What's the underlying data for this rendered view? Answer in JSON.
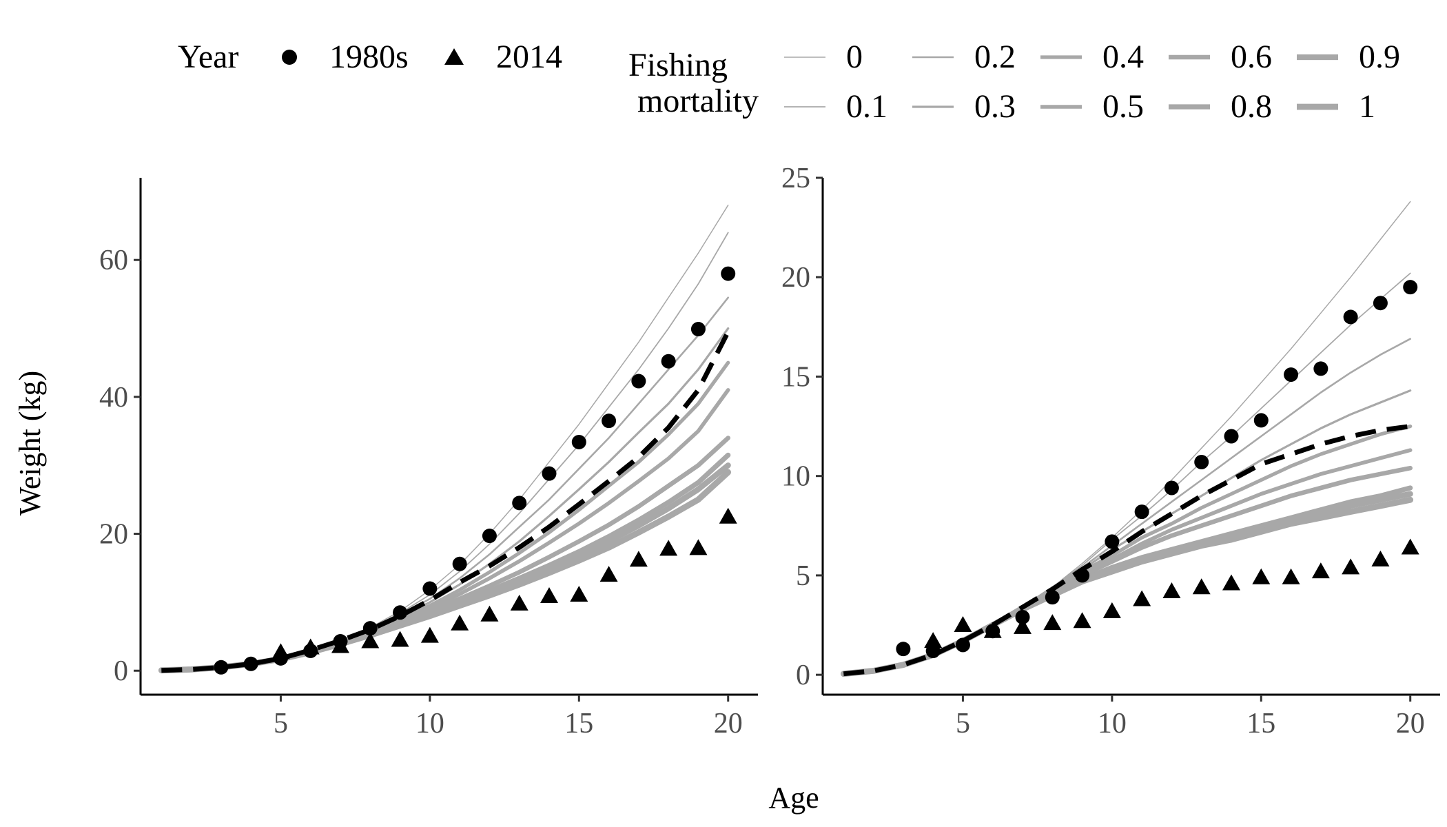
{
  "legend": {
    "year_title": "Year",
    "year_items": [
      {
        "label": "1980s",
        "shape": "circle"
      },
      {
        "label": "2014",
        "shape": "triangle"
      }
    ],
    "fm_title_line1": "Fishing",
    "fm_title_line2": "mortality",
    "fm_items": [
      {
        "label": "0",
        "width": 1.5
      },
      {
        "label": "0.1",
        "width": 1.8
      },
      {
        "label": "0.2",
        "width": 2.6
      },
      {
        "label": "0.3",
        "width": 3.2
      },
      {
        "label": "0.4",
        "width": 5.2
      },
      {
        "label": "0.5",
        "width": 5.6
      },
      {
        "label": "0.6",
        "width": 6.6
      },
      {
        "label": "0.8",
        "width": 7.2
      },
      {
        "label": "0.9",
        "width": 8.2
      },
      {
        "label": "1",
        "width": 8.8
      }
    ]
  },
  "x_axis_title": "Age",
  "chart_data": [
    {
      "type": "line",
      "panel": "left",
      "ylabel": "Weight (kg)",
      "xlim": [
        0.3,
        21
      ],
      "ylim": [
        -3.5,
        72
      ],
      "x_ticks": [
        5,
        10,
        15,
        20
      ],
      "y_ticks": [
        0,
        20,
        40,
        60
      ],
      "curve_x": [
        1,
        2,
        3,
        4,
        5,
        6,
        7,
        8,
        9,
        10,
        11,
        12,
        13,
        14,
        15,
        16,
        17,
        18,
        19,
        20
      ],
      "curves": [
        {
          "name": "0",
          "values": [
            0.05,
            0.18,
            0.5,
            1.0,
            1.8,
            3.0,
            4.5,
            6.3,
            8.7,
            11.8,
            15.5,
            20.0,
            25.0,
            30.5,
            36.0,
            42.0,
            48.0,
            54.5,
            61.0,
            68.0
          ]
        },
        {
          "name": "0.1",
          "values": [
            0.05,
            0.18,
            0.5,
            1.0,
            1.8,
            3.0,
            4.5,
            6.2,
            8.4,
            11.1,
            14.5,
            18.5,
            23.0,
            28.0,
            33.0,
            38.5,
            44.0,
            50.0,
            56.5,
            64.0
          ]
        },
        {
          "name": "0.2",
          "values": [
            0.05,
            0.18,
            0.5,
            1.0,
            1.8,
            3.0,
            4.4,
            6.0,
            8.1,
            10.5,
            13.5,
            17.0,
            21.0,
            25.0,
            29.5,
            34.0,
            39.0,
            44.0,
            49.0,
            54.5
          ]
        },
        {
          "name": "0.3",
          "values": [
            0.05,
            0.18,
            0.5,
            1.0,
            1.8,
            2.9,
            4.3,
            5.9,
            7.8,
            10.0,
            12.6,
            15.6,
            18.9,
            22.6,
            26.5,
            30.5,
            34.8,
            39.0,
            44.0,
            50.0
          ]
        },
        {
          "name": "0.4",
          "values": [
            0.05,
            0.18,
            0.5,
            1.0,
            1.8,
            2.9,
            4.2,
            5.8,
            7.5,
            9.5,
            11.8,
            14.4,
            17.2,
            20.2,
            23.5,
            27.0,
            30.5,
            34.5,
            39.0,
            45.0
          ]
        },
        {
          "name": "0.5",
          "values": [
            0.05,
            0.18,
            0.5,
            1.0,
            1.8,
            2.9,
            4.2,
            5.7,
            7.3,
            9.1,
            11.2,
            13.5,
            16.0,
            18.7,
            21.5,
            24.5,
            27.7,
            31.0,
            35.0,
            41.0
          ]
        },
        {
          "name": "0.6",
          "values": [
            0.05,
            0.18,
            0.5,
            1.0,
            1.8,
            2.8,
            4.1,
            5.5,
            7.0,
            8.7,
            10.5,
            12.4,
            14.4,
            16.6,
            18.9,
            21.3,
            24.0,
            27.0,
            30.0,
            34.0
          ]
        },
        {
          "name": "0.8",
          "values": [
            0.05,
            0.18,
            0.5,
            1.0,
            1.8,
            2.8,
            4.0,
            5.4,
            6.8,
            8.4,
            10.0,
            11.7,
            13.5,
            15.4,
            17.4,
            19.6,
            22.0,
            24.6,
            27.5,
            31.5
          ]
        },
        {
          "name": "0.9",
          "values": [
            0.05,
            0.18,
            0.5,
            1.0,
            1.7,
            2.8,
            4.0,
            5.3,
            6.7,
            8.2,
            9.8,
            11.4,
            13.1,
            14.9,
            16.8,
            18.9,
            21.2,
            23.7,
            26.5,
            30.0
          ]
        },
        {
          "name": "1",
          "values": [
            0.05,
            0.18,
            0.5,
            1.0,
            1.7,
            2.7,
            3.9,
            5.2,
            6.6,
            8.0,
            9.5,
            11.0,
            12.6,
            14.3,
            16.1,
            18.0,
            20.2,
            22.5,
            25.0,
            29.0
          ]
        }
      ],
      "dashed_line": {
        "values": [
          0.05,
          0.18,
          0.5,
          1.0,
          1.8,
          3.0,
          4.4,
          6.0,
          8.0,
          10.3,
          12.9,
          15.3,
          18.0,
          21.0,
          24.3,
          27.7,
          31.2,
          35.5,
          41.0,
          49.5
        ]
      },
      "points_1980s": {
        "x": [
          3,
          4,
          5,
          6,
          7,
          8,
          9,
          10,
          11,
          12,
          13,
          14,
          15,
          16,
          17,
          18,
          19,
          20
        ],
        "y": [
          0.5,
          1.0,
          1.8,
          2.9,
          4.3,
          6.2,
          8.5,
          12.0,
          15.6,
          19.7,
          24.5,
          28.8,
          33.4,
          36.5,
          42.3,
          45.2,
          49.9,
          58.0
        ]
      },
      "points_2014": {
        "x": [
          5,
          6,
          7,
          8,
          9,
          10,
          11,
          12,
          13,
          14,
          15,
          16,
          17,
          18,
          19,
          20
        ],
        "y": [
          2.7,
          3.4,
          3.6,
          4.3,
          4.5,
          5.1,
          6.9,
          8.2,
          9.8,
          10.9,
          11.1,
          14.0,
          16.2,
          17.8,
          17.9,
          22.5
        ]
      }
    },
    {
      "type": "line",
      "panel": "right",
      "ylabel": "",
      "xlim": [
        0.3,
        21
      ],
      "ylim": [
        -1.0,
        25
      ],
      "x_ticks": [
        5,
        10,
        15,
        20
      ],
      "y_ticks": [
        0,
        5,
        10,
        15,
        20,
        25
      ],
      "curve_x": [
        1,
        2,
        3,
        4,
        5,
        6,
        7,
        8,
        9,
        10,
        11,
        12,
        13,
        14,
        15,
        16,
        17,
        18,
        19,
        20
      ],
      "curves": [
        {
          "name": "0",
          "values": [
            0.05,
            0.2,
            0.5,
            1.0,
            1.7,
            2.5,
            3.4,
            4.4,
            5.6,
            6.9,
            8.3,
            9.8,
            11.4,
            13.0,
            14.7,
            16.4,
            18.2,
            20.0,
            21.9,
            23.8
          ]
        },
        {
          "name": "0.1",
          "values": [
            0.05,
            0.2,
            0.5,
            1.0,
            1.7,
            2.5,
            3.4,
            4.4,
            5.5,
            6.8,
            8.0,
            9.3,
            10.7,
            12.0,
            13.4,
            14.8,
            16.2,
            17.6,
            18.9,
            20.2
          ]
        },
        {
          "name": "0.2",
          "values": [
            0.05,
            0.2,
            0.5,
            1.0,
            1.7,
            2.5,
            3.4,
            4.4,
            5.4,
            6.5,
            7.6,
            8.7,
            9.8,
            10.9,
            12.0,
            13.1,
            14.2,
            15.2,
            16.1,
            16.9
          ]
        },
        {
          "name": "0.3",
          "values": [
            0.05,
            0.2,
            0.5,
            1.0,
            1.7,
            2.5,
            3.4,
            4.4,
            5.3,
            6.3,
            7.2,
            8.1,
            9.0,
            9.9,
            10.8,
            11.6,
            12.4,
            13.1,
            13.7,
            14.3
          ]
        },
        {
          "name": "0.4",
          "values": [
            0.05,
            0.2,
            0.5,
            1.0,
            1.7,
            2.5,
            3.4,
            4.3,
            5.2,
            6.0,
            6.9,
            7.6,
            8.4,
            9.1,
            9.8,
            10.5,
            11.1,
            11.6,
            12.1,
            12.5
          ]
        },
        {
          "name": "0.5",
          "values": [
            0.05,
            0.2,
            0.5,
            1.0,
            1.7,
            2.5,
            3.4,
            4.3,
            5.1,
            5.8,
            6.6,
            7.3,
            7.9,
            8.5,
            9.1,
            9.6,
            10.1,
            10.5,
            10.9,
            11.3
          ]
        },
        {
          "name": "0.6",
          "values": [
            0.05,
            0.2,
            0.5,
            1.0,
            1.7,
            2.5,
            3.4,
            4.2,
            5.0,
            5.7,
            6.4,
            7.0,
            7.5,
            8.0,
            8.5,
            9.0,
            9.4,
            9.8,
            10.1,
            10.4
          ]
        },
        {
          "name": "0.8",
          "values": [
            0.05,
            0.2,
            0.5,
            1.0,
            1.7,
            2.5,
            3.3,
            4.1,
            4.8,
            5.4,
            5.9,
            6.3,
            6.7,
            7.1,
            7.5,
            7.9,
            8.3,
            8.7,
            9.0,
            9.4
          ]
        },
        {
          "name": "0.9",
          "values": [
            0.05,
            0.2,
            0.5,
            1.0,
            1.7,
            2.5,
            3.3,
            4.1,
            4.8,
            5.3,
            5.8,
            6.2,
            6.6,
            7.0,
            7.4,
            7.8,
            8.1,
            8.5,
            8.8,
            9.1
          ]
        },
        {
          "name": "1",
          "values": [
            0.05,
            0.2,
            0.5,
            1.0,
            1.7,
            2.5,
            3.3,
            4.0,
            4.7,
            5.2,
            5.7,
            6.1,
            6.5,
            6.8,
            7.2,
            7.6,
            7.9,
            8.2,
            8.5,
            8.8
          ]
        }
      ],
      "dashed_line": {
        "values": [
          0.05,
          0.2,
          0.5,
          1.0,
          1.7,
          2.5,
          3.4,
          4.3,
          5.3,
          6.2,
          7.2,
          8.1,
          9.0,
          9.8,
          10.6,
          11.1,
          11.6,
          12.0,
          12.3,
          12.5
        ]
      },
      "points_1980s": {
        "x": [
          3,
          4,
          5,
          6,
          7,
          8,
          9,
          10,
          11,
          12,
          13,
          14,
          15,
          16,
          17,
          18,
          19,
          20
        ],
        "y": [
          1.3,
          1.2,
          1.5,
          2.2,
          2.9,
          3.9,
          5.0,
          6.7,
          8.2,
          9.4,
          10.7,
          12.0,
          12.8,
          15.1,
          15.4,
          18.0,
          18.7,
          19.5
        ]
      },
      "points_2014": {
        "x": [
          4,
          5,
          6,
          7,
          8,
          9,
          10,
          11,
          12,
          13,
          14,
          15,
          16,
          17,
          18,
          19,
          20
        ],
        "y": [
          1.7,
          2.5,
          2.2,
          2.4,
          2.6,
          2.7,
          3.2,
          3.8,
          4.2,
          4.4,
          4.6,
          4.9,
          4.9,
          5.2,
          5.4,
          5.8,
          6.4
        ]
      }
    }
  ]
}
